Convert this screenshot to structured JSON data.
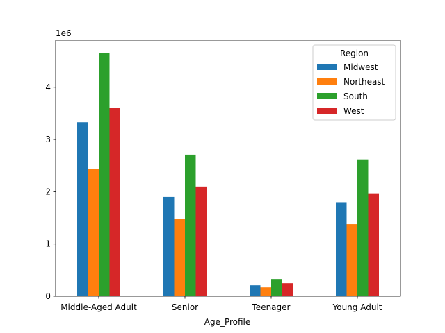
{
  "chart_data": {
    "type": "bar",
    "title": "",
    "xlabel": "Age_Profile",
    "ylabel": "",
    "y_scale_label": "1e6",
    "ylim": [
      0,
      4.9
    ],
    "yticks": [
      0,
      1,
      2,
      3,
      4
    ],
    "ytick_labels": [
      "0",
      "1",
      "2",
      "3",
      "4"
    ],
    "categories": [
      "Middle-Aged Adult",
      "Senior",
      "Teenager",
      "Young Adult"
    ],
    "legend": {
      "title": "Region",
      "placement": "top-right"
    },
    "grid": false,
    "series": [
      {
        "name": "Midwest",
        "color": "#1f77b4",
        "values": [
          3.33,
          1.9,
          0.21,
          1.8
        ]
      },
      {
        "name": "Northeast",
        "color": "#ff7f0e",
        "values": [
          2.43,
          1.48,
          0.17,
          1.38
        ]
      },
      {
        "name": "South",
        "color": "#2ca02c",
        "values": [
          4.66,
          2.71,
          0.33,
          2.62
        ]
      },
      {
        "name": "West",
        "color": "#d62728",
        "values": [
          3.61,
          2.1,
          0.25,
          1.97
        ]
      }
    ]
  }
}
